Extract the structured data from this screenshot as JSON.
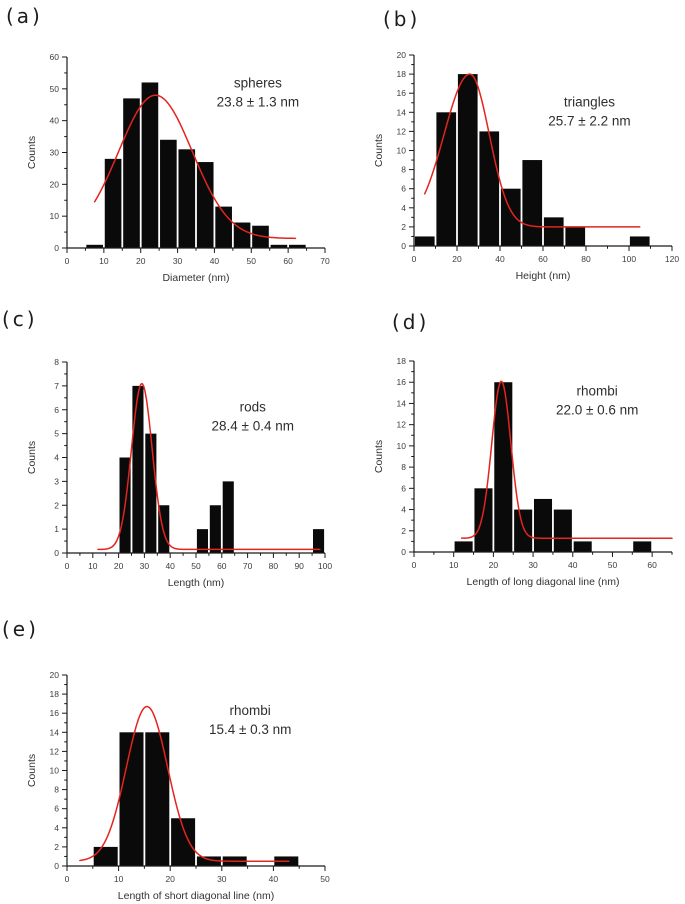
{
  "figure": {
    "background": "#ffffff",
    "description": "Five size-distribution histograms of nanoparticles with red Gaussian fit curves"
  },
  "colors": {
    "bar": "#0a0a0a",
    "curve": "#e3241f",
    "axis": "#1a1a1a",
    "tick_label": "#3d3d3d",
    "axis_label": "#333333",
    "annotation": "#2e2e2e"
  },
  "chart_data": [
    {
      "id": "a",
      "panel_label": "(a)",
      "type": "bar",
      "xlabel": "Diameter (nm)",
      "ylabel": "Counts",
      "annotation_line1": "spheres",
      "annotation_line2": "23.8 ± 1.3 nm",
      "xlim": [
        0,
        70
      ],
      "ylim": [
        0,
        60
      ],
      "xtick_major": 10,
      "xtick_minor": 5,
      "ytick_major": 10,
      "ytick_minor": 5,
      "bin_width": 5,
      "bin_centers": [
        7.5,
        12.5,
        17.5,
        22.5,
        27.5,
        32.5,
        37.5,
        42.5,
        47.5,
        52.5,
        57.5,
        62.5
      ],
      "counts": [
        1,
        28,
        47,
        52,
        34,
        31,
        27,
        13,
        8,
        7,
        1,
        1
      ],
      "fit_curve": {
        "type": "gaussian",
        "center": 24,
        "amplitude": 45,
        "sigma": 10,
        "baseline": 3,
        "x_start": 7.5,
        "x_end": 62
      }
    },
    {
      "id": "b",
      "panel_label": "(b)",
      "type": "bar",
      "xlabel": "Height (nm)",
      "ylabel": "Counts",
      "annotation_line1": "triangles",
      "annotation_line2": "25.7 ± 2.2 nm",
      "xlim": [
        0,
        120
      ],
      "ylim": [
        0,
        20
      ],
      "xtick_major": 20,
      "xtick_minor": 10,
      "ytick_major": 2,
      "ytick_minor": 1,
      "bin_width": 10,
      "bin_centers": [
        5,
        15,
        25,
        35,
        45,
        55,
        65,
        75,
        105
      ],
      "counts": [
        1,
        14,
        18,
        12,
        6,
        9,
        3,
        2,
        1
      ],
      "fit_curve": {
        "type": "gaussian",
        "center": 26,
        "amplitude": 16,
        "sigma": 10,
        "sigma_left": 12,
        "sigma_right": 9,
        "baseline": 2,
        "x_start": 5,
        "x_end": 105
      }
    },
    {
      "id": "c",
      "panel_label": "(c)",
      "type": "bar",
      "xlabel": "Length (nm)",
      "ylabel": "Counts",
      "annotation_line1": "rods",
      "annotation_line2": "28.4 ± 0.4 nm",
      "xlim": [
        0,
        100
      ],
      "ylim": [
        0,
        8
      ],
      "xtick_major": 10,
      "xtick_minor": 5,
      "ytick_major": 1,
      "ytick_minor": 0.5,
      "bin_width": 5,
      "bin_centers": [
        22.5,
        27.5,
        32.5,
        37.5,
        52.5,
        57.5,
        62.5,
        97.5
      ],
      "counts": [
        4,
        7,
        5,
        2,
        1,
        2,
        3,
        1
      ],
      "fit_curve": {
        "type": "gaussian",
        "center": 29,
        "amplitude": 6.95,
        "sigma": 4,
        "baseline": 0.15,
        "x_start": 12,
        "x_end": 98
      }
    },
    {
      "id": "d",
      "panel_label": "(d)",
      "type": "bar",
      "xlabel": "Length of long diagonal line (nm)",
      "ylabel": "Counts",
      "annotation_line1": "rhombi",
      "annotation_line2": "22.0 ± 0.6 nm",
      "xlim": [
        0,
        65
      ],
      "ylim": [
        0,
        18
      ],
      "xtick_major": 10,
      "xtick_minor": 5,
      "ytick_major": 2,
      "ytick_minor": 1,
      "bin_width": 5,
      "bin_centers": [
        12.5,
        17.5,
        22.5,
        27.5,
        32.5,
        37.5,
        42.5,
        57.5
      ],
      "counts": [
        1,
        6,
        16,
        4,
        5,
        4,
        1,
        1
      ],
      "fit_curve": {
        "type": "gaussian",
        "center": 22,
        "amplitude": 14.8,
        "sigma": 2.4,
        "baseline": 1.3,
        "x_start": 12,
        "x_end": 65
      }
    },
    {
      "id": "e",
      "panel_label": "(e)",
      "type": "bar",
      "xlabel": "Length of short diagonal line (nm)",
      "ylabel": "Counts",
      "annotation_line1": "rhombi",
      "annotation_line2": "15.4 ± 0.3 nm",
      "xlim": [
        0,
        50
      ],
      "ylim": [
        0,
        20
      ],
      "xtick_major": 10,
      "xtick_minor": 5,
      "ytick_major": 2,
      "ytick_minor": 1,
      "bin_width": 5,
      "bin_centers": [
        7.5,
        12.5,
        17.5,
        22.5,
        27.5,
        32.5,
        42.5
      ],
      "counts": [
        2,
        14,
        14,
        5,
        1,
        1,
        1
      ],
      "fit_curve": {
        "type": "gaussian",
        "center": 15.5,
        "amplitude": 16.2,
        "sigma": 4,
        "baseline": 0.5,
        "x_start": 2.5,
        "x_end": 43
      }
    }
  ]
}
